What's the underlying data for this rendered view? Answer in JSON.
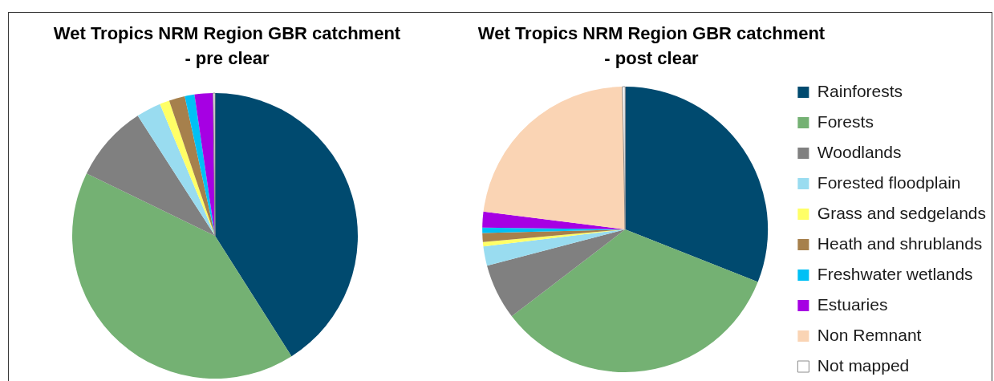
{
  "chart_data": [
    {
      "type": "pie",
      "title": "Wet Tropics NRM Region GBR catchment\n- pre clear",
      "categories": [
        null,
        null,
        null,
        null,
        null,
        null,
        null,
        null,
        null,
        null
      ],
      "values": [
        41,
        41.2,
        8.7,
        2.8,
        1.1,
        1.8,
        1.1,
        2.1,
        0,
        0.2
      ],
      "colors": [
        "#004a6f",
        "#74b173",
        "#808080",
        "#99dcf0",
        "#ffff66",
        "#a6804c",
        "#00c0f5",
        "#a600e3",
        "#fad4b4",
        "#ffffff"
      ],
      "legend": false
    },
    {
      "type": "pie",
      "title": "Wet Tropics NRM Region GBR catchment\n- post clear",
      "categories": [
        "Rainforests",
        "Forests",
        "Woodlands",
        "Forested floodplain",
        "Grass and sedgelands",
        "Heath and shrublands",
        "Freshwater wetlands",
        "Estuaries",
        "Non Remnant",
        "Not mapped"
      ],
      "values": [
        31,
        33.6,
        6.3,
        2.2,
        0.5,
        1,
        0.6,
        1.8,
        22.7,
        0.3
      ],
      "colors": [
        "#004a6f",
        "#74b173",
        "#808080",
        "#99dcf0",
        "#ffff66",
        "#a6804c",
        "#00c0f5",
        "#a600e3",
        "#fad4b4",
        "#ffffff"
      ],
      "legend": "right"
    }
  ]
}
